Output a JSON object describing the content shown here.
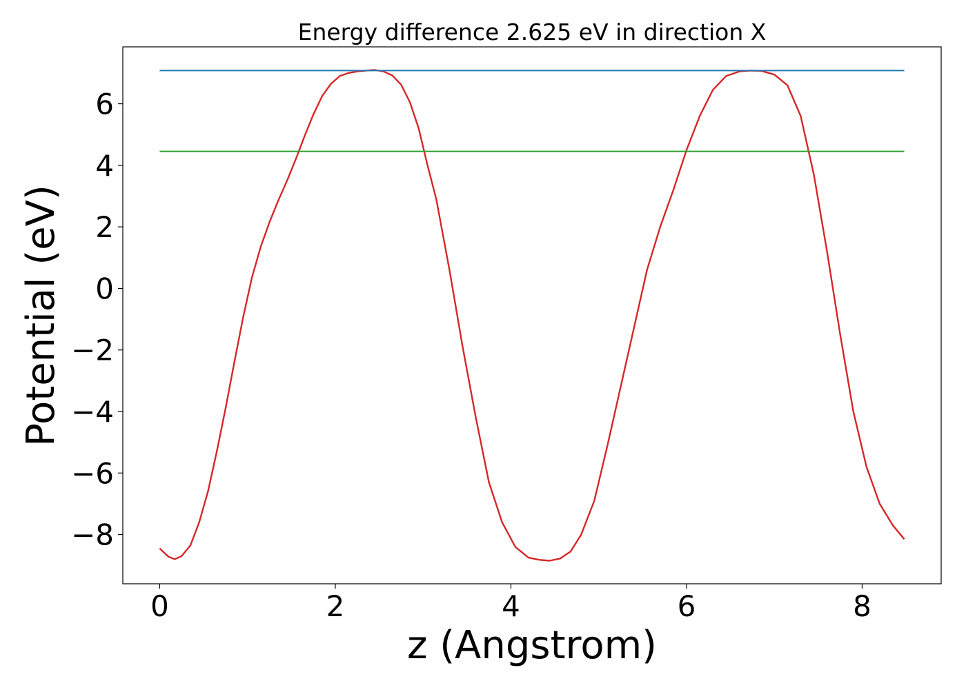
{
  "chart_data": {
    "type": "line",
    "title": "Energy difference 2.625 eV in direction X",
    "xlabel": "z (Angstrom)",
    "ylabel": "Potential (eV)",
    "xlim": [
      -0.42,
      8.9
    ],
    "ylim": [
      -9.6,
      7.85
    ],
    "xticks": [
      0,
      2,
      4,
      6,
      8
    ],
    "yticks": [
      -8,
      -6,
      -4,
      -2,
      0,
      2,
      4,
      6
    ],
    "xtick_labels": [
      "0",
      "2",
      "4",
      "6",
      "8"
    ],
    "ytick_labels": [
      "−8",
      "−6",
      "−4",
      "−2",
      "0",
      "2",
      "4",
      "6"
    ],
    "grid": false,
    "legend": "none",
    "series": [
      {
        "color": "#d62728",
        "x": [
          0.0,
          0.1,
          0.17,
          0.25,
          0.35,
          0.45,
          0.55,
          0.65,
          0.75,
          0.85,
          0.95,
          1.05,
          1.15,
          1.25,
          1.35,
          1.45,
          1.55,
          1.65,
          1.75,
          1.85,
          1.95,
          2.05,
          2.15,
          2.25,
          2.35,
          2.45,
          2.55,
          2.65,
          2.75,
          2.85,
          2.95,
          3.05,
          3.15,
          3.3,
          3.45,
          3.6,
          3.75,
          3.9,
          4.05,
          4.2,
          4.32,
          4.44,
          4.56,
          4.68,
          4.8,
          4.95,
          5.1,
          5.25,
          5.4,
          5.55,
          5.7,
          5.85,
          6.0,
          6.15,
          6.3,
          6.45,
          6.6,
          6.72,
          6.85,
          7.0,
          7.15,
          7.3,
          7.45,
          7.6,
          7.75,
          7.9,
          8.05,
          8.2,
          8.35,
          8.48
        ],
        "y": [
          -8.45,
          -8.72,
          -8.8,
          -8.7,
          -8.35,
          -7.6,
          -6.6,
          -5.3,
          -3.9,
          -2.4,
          -0.95,
          0.35,
          1.35,
          2.15,
          2.85,
          3.5,
          4.2,
          4.95,
          5.65,
          6.25,
          6.65,
          6.9,
          7.0,
          7.05,
          7.08,
          7.1,
          7.05,
          6.92,
          6.62,
          6.05,
          5.2,
          4.0,
          2.9,
          0.6,
          -1.9,
          -4.2,
          -6.3,
          -7.6,
          -8.4,
          -8.75,
          -8.82,
          -8.85,
          -8.78,
          -8.55,
          -8.0,
          -6.9,
          -5.1,
          -3.2,
          -1.3,
          0.6,
          2.0,
          3.2,
          4.5,
          5.6,
          6.45,
          6.9,
          7.05,
          7.08,
          7.07,
          6.95,
          6.6,
          5.6,
          3.7,
          1.2,
          -1.5,
          -4.0,
          -5.8,
          -7.0,
          -7.7,
          -8.15
        ]
      },
      {
        "color": "#1f77b4",
        "x": [
          0.0,
          8.48
        ],
        "y": [
          7.08,
          7.08
        ]
      },
      {
        "color": "#2ca02c",
        "x": [
          0.0,
          8.48
        ],
        "y": [
          4.455,
          4.455
        ]
      }
    ]
  }
}
